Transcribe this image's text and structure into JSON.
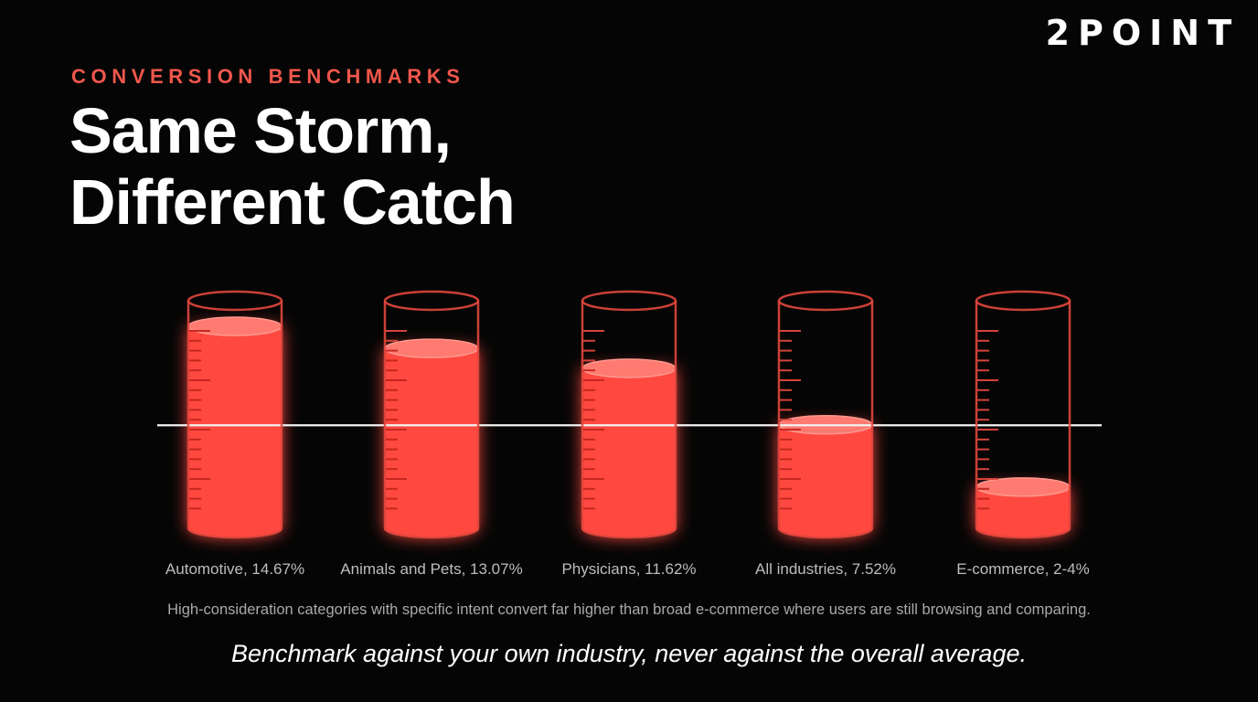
{
  "brand": "2POINT",
  "eyebrow": "CONVERSION BENCHMARKS",
  "headline": {
    "line1": "Same Storm,",
    "line2": "Different Catch"
  },
  "chart_data": {
    "type": "bar",
    "style": "filled graduated cylinders",
    "categories": [
      "Automotive",
      "Animals and Pets",
      "Physicians",
      "All industries",
      "E-commerce"
    ],
    "values": [
      14.67,
      13.07,
      11.62,
      7.52,
      3
    ],
    "labels": [
      "Automotive, 14.67%",
      "Animals and Pets, 13.07%",
      "Physicians, 11.62%",
      "All industries, 7.52%",
      "E-commerce, 2-4%"
    ],
    "unit": "%",
    "reference_line": {
      "value": 7.52
    },
    "title": "",
    "xlabel": "",
    "ylabel": "",
    "ylim": [
      0,
      16
    ],
    "grid": false,
    "legend": "none"
  },
  "caption": "High-consideration categories with specific intent convert far higher than broad e-commerce where users are still browsing and comparing.",
  "takeaway": "Benchmark against your own industry, never against the overall average.",
  "colors": {
    "background": "#050505",
    "accent": "#f0574c",
    "liquid": "#ff4a40",
    "liquid_top": "#ff7a70",
    "glass_outline": "#e1473d",
    "reference_line": "#f2f2f2",
    "caption_text": "#a9a9a9"
  }
}
